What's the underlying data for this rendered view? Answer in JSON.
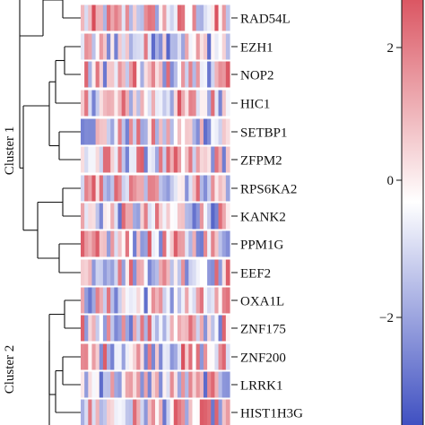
{
  "chart_data": {
    "type": "heatmap",
    "title": "",
    "rows": [
      "RAD54L",
      "EZH1",
      "NOP2",
      "HIC1",
      "SETBP1",
      "ZFPM2",
      "RPS6KA2",
      "KANK2",
      "PPM1G",
      "EEF2",
      "OXA1L",
      "ZNF175",
      "ZNF200",
      "LRRK1",
      "HIST1H3G"
    ],
    "clusters": [
      {
        "name": "Cluster 1",
        "rows": [
          "RAD54L",
          "EZH1",
          "NOP2",
          "HIC1",
          "SETBP1",
          "ZFPM2",
          "RPS6KA2",
          "KANK2",
          "PPM1G",
          "EEF2"
        ]
      },
      {
        "name": "Cluster 2",
        "rows": [
          "OXA1L",
          "ZNF175",
          "ZNF200",
          "LRRK1",
          "HIST1H3G"
        ]
      }
    ],
    "colorbar": {
      "ticks": [
        2,
        0,
        -2
      ],
      "tick_labels": [
        "2",
        "0",
        "−2"
      ],
      "range": [
        -2.9,
        2.9
      ],
      "colors": {
        "low": "#3b4cc0",
        "mid": "#ffffff",
        "high": "#d6404e"
      }
    },
    "columns_per_row": 40
  }
}
